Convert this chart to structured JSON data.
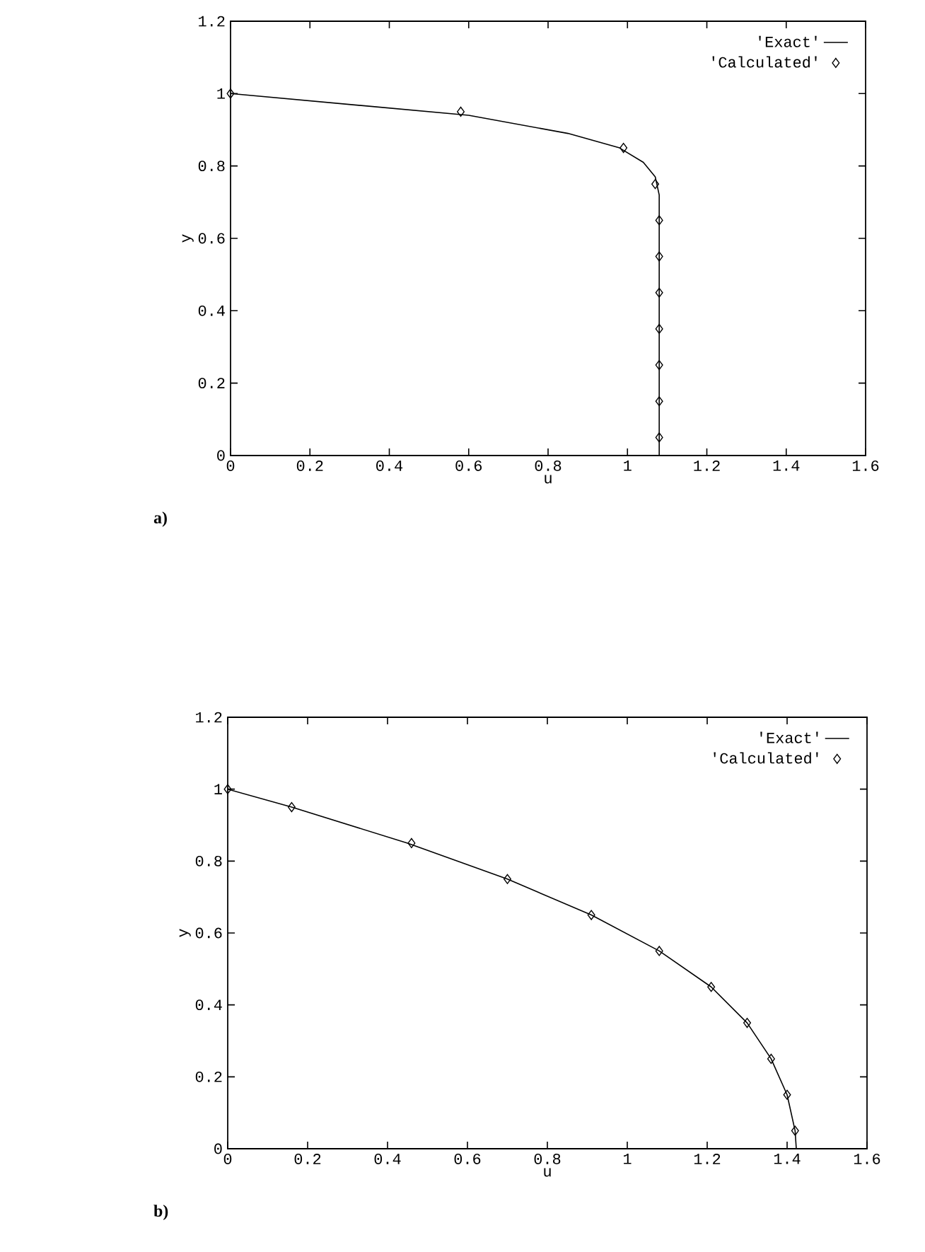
{
  "chart_data": [
    {
      "type": "line",
      "xlabel": "u",
      "ylabel": "y",
      "annotations": [
        "a)"
      ],
      "xlim": [
        0,
        1.6
      ],
      "ylim": [
        0,
        1.2
      ],
      "xticks": [
        0,
        0.2,
        0.4,
        0.6,
        0.8,
        1,
        1.2,
        1.4,
        1.6
      ],
      "yticks": [
        0,
        0.2,
        0.4,
        0.6,
        0.8,
        1,
        1.2
      ],
      "grid": false,
      "legend": "top right",
      "series": [
        {
          "name": "'Exact'",
          "type": "line",
          "color": "#000000",
          "marker": "none",
          "line_style": "solid",
          "x": [
            0,
            0.3,
            0.6,
            0.85,
            0.98,
            1.04,
            1.07,
            1.08,
            1.08,
            1.08
          ],
          "values": [
            1,
            0.97,
            0.94,
            0.89,
            0.85,
            0.81,
            0.77,
            0.72,
            0.65,
            0
          ]
        },
        {
          "name": "'Calculated'",
          "type": "scatter",
          "color": "#000000",
          "marker": "diamond",
          "x": [
            0,
            0.58,
            0.99,
            1.07,
            1.08,
            1.08,
            1.08,
            1.08,
            1.08,
            1.08,
            1.08
          ],
          "values": [
            1,
            0.95,
            0.85,
            0.75,
            0.65,
            0.55,
            0.45,
            0.35,
            0.25,
            0.15,
            0.05
          ]
        }
      ]
    },
    {
      "type": "line",
      "xlabel": "u",
      "ylabel": "y",
      "annotations": [
        "b)"
      ],
      "xlim": [
        0,
        1.6
      ],
      "ylim": [
        0,
        1.2
      ],
      "xticks": [
        0,
        0.2,
        0.4,
        0.6,
        0.8,
        1,
        1.2,
        1.4,
        1.6
      ],
      "yticks": [
        0,
        0.2,
        0.4,
        0.6,
        0.8,
        1,
        1.2
      ],
      "grid": false,
      "legend": "top right",
      "series": [
        {
          "name": "'Exact'",
          "type": "line",
          "color": "#000000",
          "marker": "none",
          "line_style": "solid",
          "x": [
            0,
            0.16,
            0.45,
            0.7,
            0.91,
            1.08,
            1.21,
            1.3,
            1.36,
            1.4,
            1.42,
            1.423
          ],
          "values": [
            1,
            0.95,
            0.85,
            0.75,
            0.65,
            0.55,
            0.45,
            0.35,
            0.25,
            0.15,
            0.05,
            0
          ]
        },
        {
          "name": "'Calculated'",
          "type": "scatter",
          "color": "#000000",
          "marker": "diamond",
          "x": [
            0,
            0.16,
            0.46,
            0.7,
            0.91,
            1.08,
            1.21,
            1.3,
            1.36,
            1.4,
            1.42
          ],
          "values": [
            1,
            0.95,
            0.85,
            0.75,
            0.65,
            0.55,
            0.45,
            0.35,
            0.25,
            0.15,
            0.05
          ]
        }
      ]
    }
  ]
}
